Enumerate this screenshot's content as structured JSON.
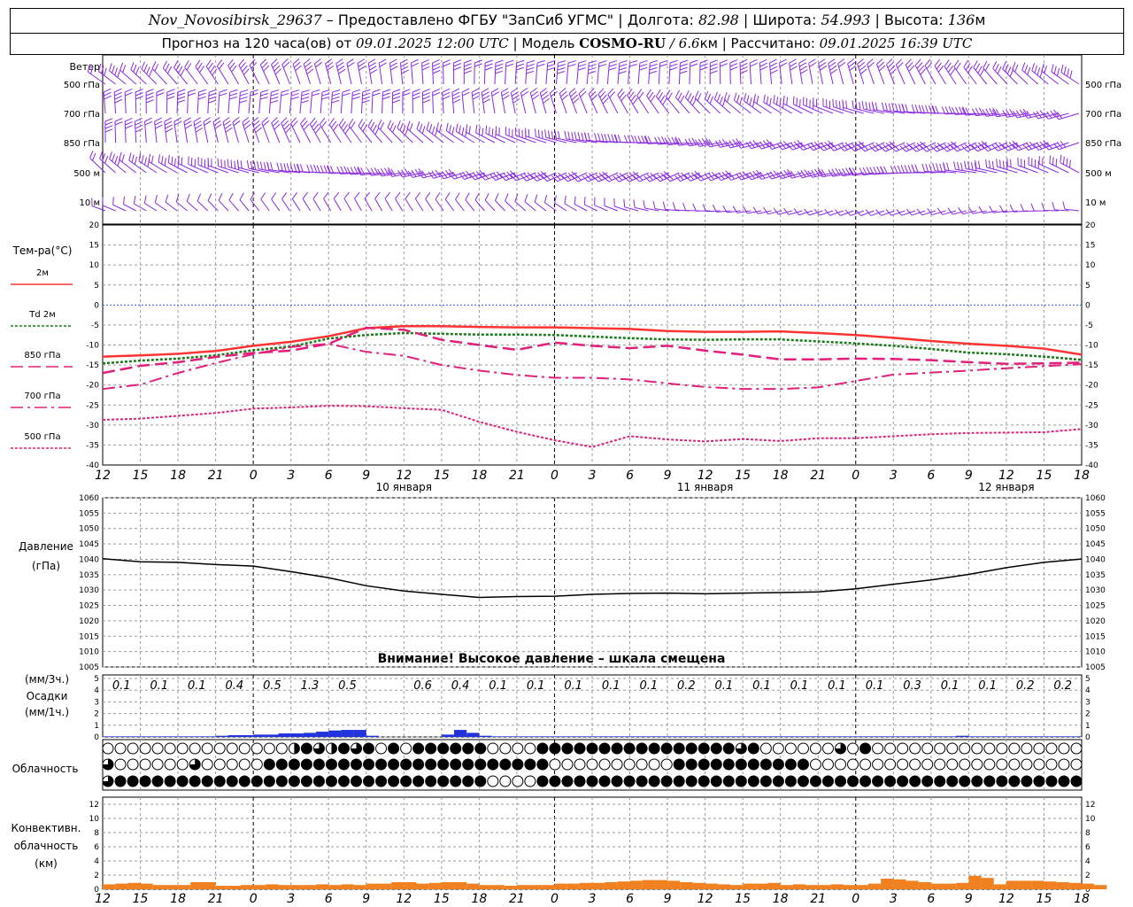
{
  "header": {
    "station": "Nov_Novosibirsk_29637",
    "provider": " – Предоставлено ФГБУ \"ЗапСиб УГМС\" | Долгота: ",
    "longitude": "82.98",
    "lat_label": " | Широта: ",
    "latitude": "54.993",
    "alt_label": " | Высота: ",
    "altitude": "136",
    "alt_unit": "м",
    "forecast_prefix": "Прогноз на 120 часа(ов) от ",
    "forecast_time": "09.01.2025 12:00 UTC",
    "model_label": " | Модель ",
    "model_name": "COSMO-RU",
    "model_res": " / 6.6",
    "model_res_unit": "км",
    "computed_label": " | Рассчитано: ",
    "computed_time": "09.01.2025 16:39 UTC"
  },
  "labels": {
    "wind": "Ветер",
    "wind_levels": [
      "500 гПа",
      "700 гПа",
      "850 гПа",
      "500 м",
      "10  м"
    ],
    "temp_title": "Тем-ра(°С)",
    "legend": [
      "2м",
      "Td  2м",
      "850 гПа",
      "700 гПа",
      "500 гПа"
    ],
    "pressure_title": "Давление",
    "pressure_unit": "(гПа)",
    "pressure_warning": "Внимание! Высокое давление – шкала смещена",
    "precip_top": "(мм/3ч.)",
    "precip_title": "Осадки",
    "precip_unit": "(мм/1ч.)",
    "cloud_title": "Облачность",
    "conv_title_1": "Конвективн.",
    "conv_title_2": "облачность",
    "conv_unit": "(км)"
  },
  "colors": {
    "wind_barb": "#8a2be2",
    "temp_2m": "#ff3333",
    "dewpoint_2m": "#1a7a1a",
    "t850": "#e0207a",
    "t700": "#e0207a",
    "t500": "#e0207a",
    "zero_line": "#3355dd",
    "pressure": "#000000",
    "precip": "#2233dd",
    "convective": "#f08020",
    "grid": "#9a9a9a"
  },
  "time_axis": {
    "hours": [
      "12",
      "15",
      "18",
      "21",
      "0",
      "3",
      "6",
      "9",
      "12",
      "15",
      "18",
      "21",
      "0",
      "3",
      "6",
      "9",
      "12",
      "15",
      "18",
      "21",
      "0",
      "3",
      "6",
      "9",
      "12",
      "15",
      "18"
    ],
    "day_labels": [
      "10 января",
      "11 января",
      "12 января"
    ],
    "day_label_hours": [
      24,
      48,
      72
    ]
  },
  "chart_data": [
    {
      "type": "line",
      "name": "temperature",
      "x_hours": [
        0,
        3,
        6,
        9,
        12,
        15,
        18,
        21,
        24,
        27,
        30,
        33,
        36,
        39,
        42,
        45,
        48,
        51,
        54,
        57,
        60,
        63,
        66,
        69,
        72,
        75,
        78
      ],
      "ylim": [
        -40,
        20
      ],
      "yticks": [
        20,
        15,
        10,
        5,
        0,
        -5,
        -10,
        -15,
        -20,
        -25,
        -30,
        -35,
        -40
      ],
      "series": [
        {
          "name": "2м",
          "values": [
            -12.9,
            -12.6,
            -12.2,
            -11.5,
            -10.2,
            -9.2,
            -7.8,
            -5.8,
            -5.3,
            -5.3,
            -5.5,
            -5.6,
            -5.6,
            -5.8,
            -6.0,
            -6.5,
            -6.7,
            -6.7,
            -6.6,
            -7.0,
            -7.5,
            -8.2,
            -9.0,
            -9.7,
            -10.2,
            -10.9,
            -12.4
          ]
        },
        {
          "name": "Td  2м",
          "values": [
            -14.6,
            -13.9,
            -13.4,
            -12.6,
            -11.3,
            -10.4,
            -8.4,
            -7.5,
            -7.0,
            -7.2,
            -7.4,
            -7.4,
            -7.5,
            -7.9,
            -8.3,
            -8.6,
            -8.7,
            -8.6,
            -8.6,
            -9.1,
            -9.6,
            -10.2,
            -11.0,
            -11.9,
            -12.3,
            -12.9,
            -13.7
          ]
        },
        {
          "name": "850 гПа",
          "values": [
            -17.0,
            -15.2,
            -14.3,
            -13.0,
            -12.0,
            -11.4,
            -9.7,
            -5.7,
            -6.2,
            -8.7,
            -10.0,
            -11.2,
            -9.4,
            -10.2,
            -10.8,
            -10.2,
            -11.4,
            -12.4,
            -13.6,
            -13.6,
            -13.4,
            -13.5,
            -13.8,
            -14.3,
            -14.7,
            -14.6,
            -14.4
          ]
        },
        {
          "name": "700 гПа",
          "values": [
            -21.0,
            -19.9,
            -17.0,
            -14.5,
            -12.3,
            -10.5,
            -9.7,
            -11.7,
            -12.7,
            -15.0,
            -16.4,
            -17.5,
            -18.2,
            -18.2,
            -18.6,
            -19.6,
            -20.5,
            -21.0,
            -21.0,
            -20.6,
            -19.0,
            -17.4,
            -16.9,
            -16.4,
            -15.8,
            -15.3,
            -14.8
          ]
        },
        {
          "name": "500 гПа",
          "values": [
            -28.7,
            -28.4,
            -27.7,
            -27.0,
            -25.9,
            -25.6,
            -25.2,
            -25.3,
            -25.8,
            -26.2,
            -29.2,
            -31.7,
            -33.8,
            -35.5,
            -32.8,
            -33.6,
            -34.1,
            -33.5,
            -34.0,
            -33.3,
            -33.3,
            -32.8,
            -32.3,
            -32.0,
            -31.9,
            -31.8,
            -31.0
          ]
        }
      ]
    },
    {
      "type": "line",
      "name": "pressure",
      "x_hours": [
        0,
        3,
        6,
        9,
        12,
        15,
        18,
        21,
        24,
        27,
        30,
        33,
        36,
        39,
        42,
        45,
        48,
        51,
        54,
        57,
        60,
        63,
        66,
        69,
        72,
        75,
        78
      ],
      "ylim": [
        1005,
        1060
      ],
      "yticks": [
        1060,
        1055,
        1050,
        1045,
        1040,
        1035,
        1030,
        1025,
        1020,
        1015,
        1010,
        1005
      ],
      "series": [
        {
          "name": "pressure",
          "values": [
            1040.2,
            1039.2,
            1039.0,
            1038.3,
            1037.8,
            1036.0,
            1034.0,
            1031.4,
            1029.7,
            1028.6,
            1027.6,
            1027.9,
            1028.0,
            1028.6,
            1028.9,
            1029.0,
            1028.8,
            1029.0,
            1029.2,
            1029.4,
            1030.4,
            1031.9,
            1033.3,
            1035.1,
            1037.3,
            1039.0,
            1040.1
          ]
        }
      ]
    },
    {
      "type": "bar",
      "name": "precipitation",
      "ylim": [
        0,
        5
      ],
      "yticks": [
        5,
        4,
        3,
        2,
        1,
        0
      ],
      "labels_3h": [
        "0.1",
        "0.1",
        "0.1",
        "0.4",
        "0.5",
        "1.3",
        "0.5",
        "",
        "0.6",
        "0.4",
        "0.1",
        "0.1",
        "0.1",
        "0.1",
        "0.1",
        "0.2",
        "0.1",
        "0.1",
        "0.1",
        "0.1",
        "0.1",
        "0.3",
        "0.1",
        "0.1",
        "0.2",
        "0.2"
      ],
      "hourly_mm": [
        0.05,
        0.05,
        0.05,
        0.05,
        0.05,
        0.05,
        0.05,
        0.05,
        0.05,
        0.1,
        0.15,
        0.15,
        0.2,
        0.2,
        0.3,
        0.3,
        0.35,
        0.45,
        0.55,
        0.6,
        0.6,
        0.1,
        0,
        0,
        0,
        0,
        0,
        0.2,
        0.6,
        0.35,
        0.1,
        0.05,
        0.05,
        0.05,
        0.05,
        0.05,
        0.05,
        0.05,
        0.05,
        0.05,
        0.05,
        0.05,
        0.05,
        0.05,
        0.05,
        0.05,
        0.05,
        0.05,
        0.05,
        0.05,
        0.05,
        0.05,
        0.05,
        0.05,
        0.05,
        0.05,
        0.05,
        0.05,
        0.05,
        0.05,
        0.05,
        0.05,
        0.05,
        0.05,
        0.05,
        0.05,
        0.05,
        0.05,
        0.1,
        0.05,
        0.05,
        0.05,
        0.05,
        0.05,
        0.05,
        0.05,
        0.05,
        0.05
      ]
    },
    {
      "type": "bar",
      "name": "convective_cloud_km",
      "ylim": [
        0,
        13
      ],
      "yticks": [
        12,
        10,
        8,
        6,
        4,
        2,
        0
      ],
      "hourly_km": [
        0.7,
        0.8,
        0.9,
        0.8,
        0.6,
        0.6,
        0.6,
        1.0,
        1.0,
        0.5,
        0.5,
        0.6,
        0.6,
        0.7,
        0.6,
        0.6,
        0.6,
        0.7,
        0.6,
        0.7,
        0.6,
        0.8,
        0.8,
        1.0,
        1.0,
        0.8,
        0.9,
        1.0,
        1.0,
        0.8,
        0.6,
        0.6,
        0.5,
        0.6,
        0.6,
        0.6,
        0.8,
        0.8,
        0.9,
        0.9,
        1.0,
        1.1,
        1.2,
        1.3,
        1.3,
        1.2,
        1.0,
        0.9,
        0.8,
        0.7,
        0.6,
        0.8,
        0.8,
        0.9,
        0.6,
        0.7,
        0.6,
        0.6,
        0.7,
        0.6,
        0.6,
        0.8,
        1.5,
        1.4,
        1.2,
        1.0,
        0.8,
        0.8,
        0.9,
        1.9,
        1.6,
        0.7,
        1.2,
        1.2,
        1.2,
        1.1,
        1.0,
        0.9,
        0.8,
        0.6
      ]
    }
  ],
  "clouds": {
    "rows": [
      "00000000000000013213230303333330000333333333333333323000000203000000000000000000000000000000000000000000000000000000000000000000",
      "20000002000003333333333333333333333300000000003333333333300000000000000000000000000000000000000000000000000000000000000000000000",
      "23333333333333333333333333333330000333333333333333333333333333333333333333333333333333333333333333333333333333333333333333333333"
    ]
  }
}
